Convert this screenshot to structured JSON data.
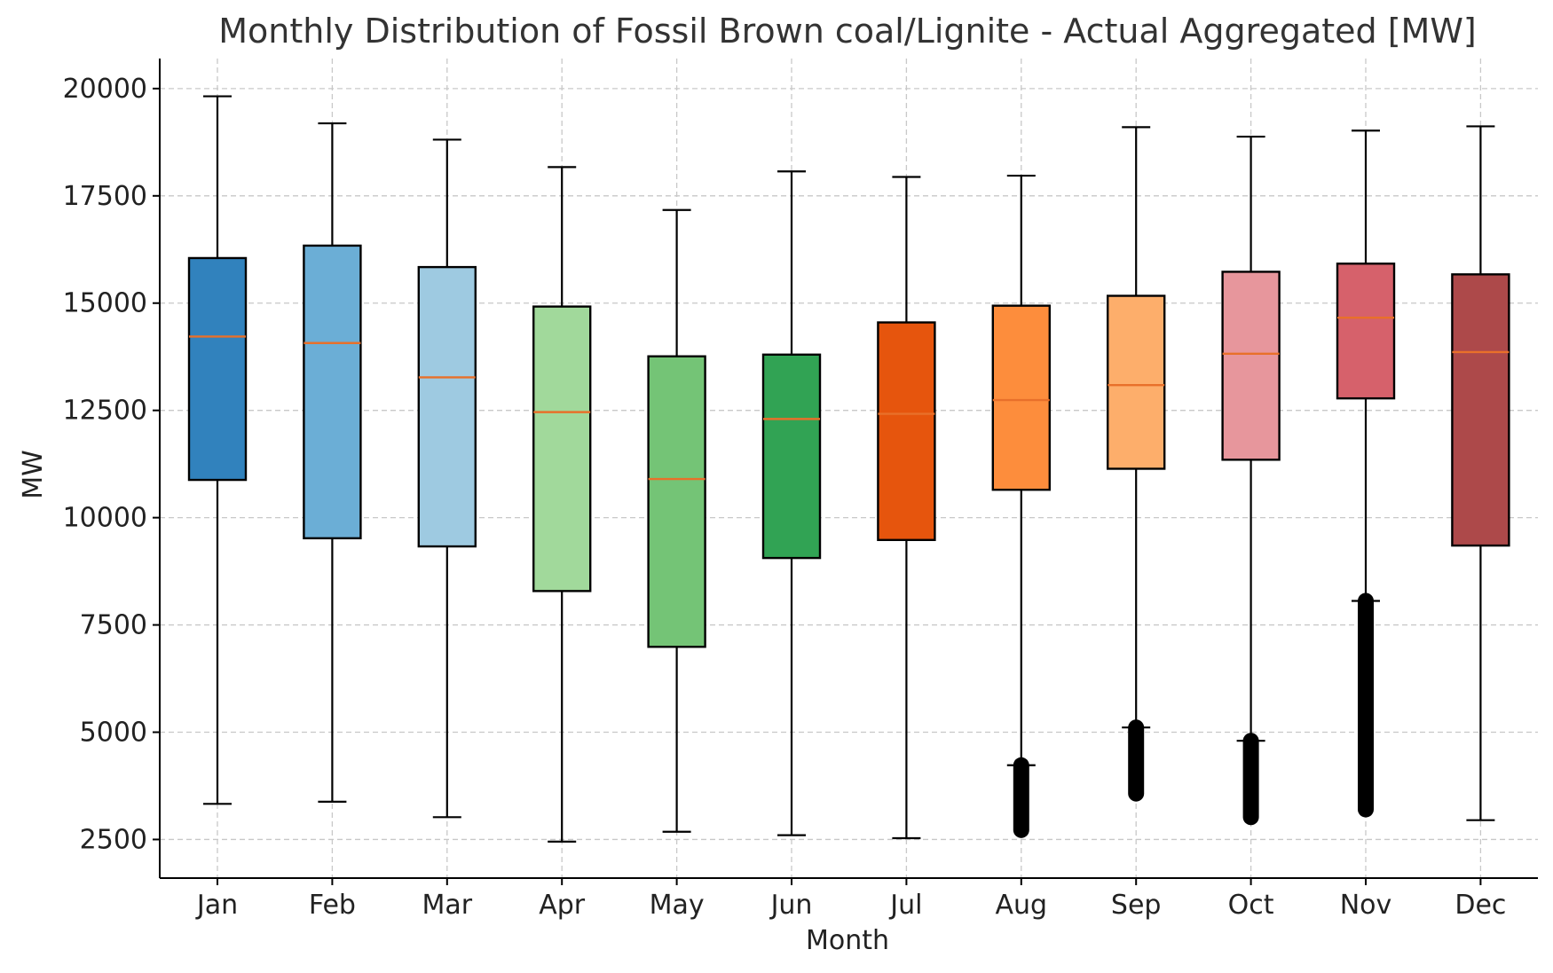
{
  "chart_data": {
    "type": "box",
    "title": "Monthly Distribution of Fossil Brown coal/Lignite - Actual Aggregated [MW]",
    "xlabel": "Month",
    "ylabel": "MW",
    "ylim": [
      1600,
      20700
    ],
    "yticks": [
      2500,
      5000,
      7500,
      10000,
      12500,
      15000,
      17500,
      20000
    ],
    "grid": true,
    "median_color": "#e8702a",
    "categories": [
      "Jan",
      "Feb",
      "Mar",
      "Apr",
      "May",
      "Jun",
      "Jul",
      "Aug",
      "Sep",
      "Oct",
      "Nov",
      "Dec"
    ],
    "boxes": [
      {
        "month": "Jan",
        "whisker_low": 3330,
        "q1": 10880,
        "median": 14220,
        "q3": 16050,
        "whisker_high": 19820,
        "color": "#3182bd"
      },
      {
        "month": "Feb",
        "whisker_low": 3380,
        "q1": 9520,
        "median": 14070,
        "q3": 16340,
        "whisker_high": 19190,
        "color": "#6baed6"
      },
      {
        "month": "Mar",
        "whisker_low": 3020,
        "q1": 9330,
        "median": 13270,
        "q3": 15840,
        "whisker_high": 18810,
        "color": "#9ecae1"
      },
      {
        "month": "Apr",
        "whisker_low": 2450,
        "q1": 8290,
        "median": 12460,
        "q3": 14920,
        "whisker_high": 18170,
        "color": "#a1d99b"
      },
      {
        "month": "May",
        "whisker_low": 2680,
        "q1": 6990,
        "median": 10900,
        "q3": 13760,
        "whisker_high": 17170,
        "color": "#74c476"
      },
      {
        "month": "Jun",
        "whisker_low": 2600,
        "q1": 9060,
        "median": 12300,
        "q3": 13800,
        "whisker_high": 18070,
        "color": "#31a354"
      },
      {
        "month": "Jul",
        "whisker_low": 2530,
        "q1": 9480,
        "median": 12420,
        "q3": 14550,
        "whisker_high": 17940,
        "color": "#e6550d"
      },
      {
        "month": "Aug",
        "whisker_low": 4230,
        "q1": 10650,
        "median": 12740,
        "q3": 14940,
        "whisker_high": 17970,
        "color": "#fd8d3c",
        "outliers_range": [
          2720,
          4230
        ]
      },
      {
        "month": "Sep",
        "whisker_low": 5110,
        "q1": 11140,
        "median": 13090,
        "q3": 15170,
        "whisker_high": 19100,
        "color": "#fdae6b",
        "outliers_range": [
          3570,
          5110
        ]
      },
      {
        "month": "Oct",
        "whisker_low": 4800,
        "q1": 11350,
        "median": 13820,
        "q3": 15730,
        "whisker_high": 18880,
        "color": "#e7969c",
        "outliers_range": [
          3020,
          4800
        ]
      },
      {
        "month": "Nov",
        "whisker_low": 8060,
        "q1": 12780,
        "median": 14660,
        "q3": 15920,
        "whisker_high": 19020,
        "color": "#d6616b",
        "outliers_range": [
          3200,
          8060
        ]
      },
      {
        "month": "Dec",
        "whisker_low": 2950,
        "q1": 9350,
        "median": 13860,
        "q3": 15670,
        "whisker_high": 19120,
        "color": "#ad494a"
      }
    ]
  }
}
